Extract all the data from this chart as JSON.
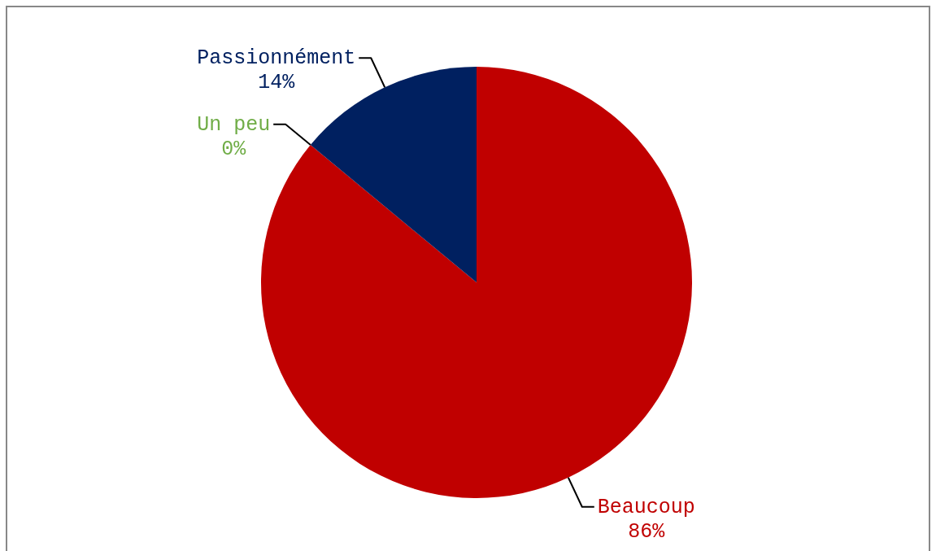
{
  "chart_data": {
    "type": "pie",
    "categories": [
      "Beaucoup",
      "Un peu",
      "Passionnément"
    ],
    "values": [
      86,
      0,
      14
    ],
    "colors": [
      "#c00000",
      "#70ad47",
      "#002060"
    ],
    "value_labels": [
      "86%",
      "0%",
      "14%"
    ]
  }
}
